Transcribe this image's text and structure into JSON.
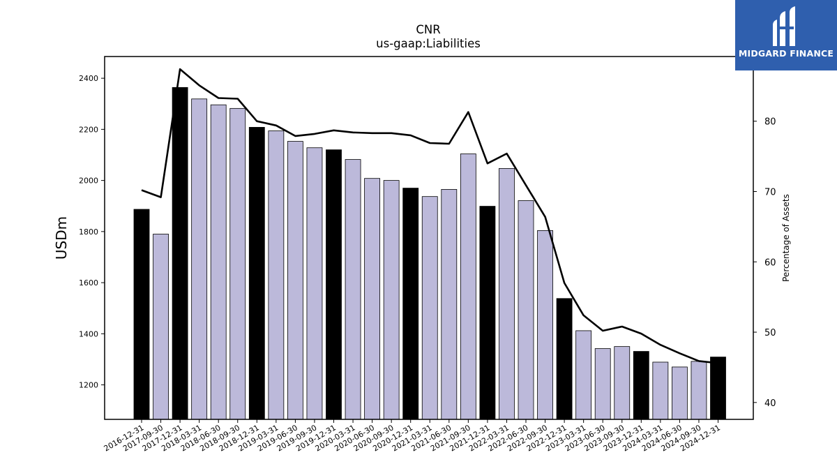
{
  "chart_data": {
    "type": "bar",
    "title": "CNR",
    "subtitle": "us-gaap:Liabilities",
    "ylabel": "USDm",
    "y2label": "Percentage of Assets",
    "ylim": [
      1065,
      2485
    ],
    "y2lim": [
      37.6,
      89.2
    ],
    "yticks": [
      1200,
      1400,
      1600,
      1800,
      2000,
      2200,
      2400
    ],
    "y2ticks": [
      40,
      50,
      60,
      70,
      80
    ],
    "categories": [
      "2016-12-31",
      "2017-09-30",
      "2017-12-31",
      "2018-03-31",
      "2018-06-30",
      "2018-09-30",
      "2018-12-31",
      "2019-03-31",
      "2019-06-30",
      "2019-09-30",
      "2019-12-31",
      "2020-03-31",
      "2020-06-30",
      "2020-09-30",
      "2020-12-31",
      "2021-03-31",
      "2021-06-30",
      "2021-09-30",
      "2021-12-31",
      "2022-03-31",
      "2022-06-30",
      "2022-09-30",
      "2022-12-31",
      "2023-03-31",
      "2023-06-30",
      "2023-09-30",
      "2023-12-31",
      "2024-03-31",
      "2024-06-30",
      "2024-09-30",
      "2024-12-31"
    ],
    "series": [
      {
        "values": [
          1887,
          1790,
          2364,
          2319,
          2296,
          2282,
          2208,
          2194,
          2153,
          2128,
          2120,
          2082,
          2008,
          2000,
          1970,
          1937,
          1965,
          2104,
          1899,
          2047,
          1921,
          1804,
          1538,
          1412,
          1342,
          1350,
          1331,
          1289,
          1270,
          1292,
          1309
        ],
        "colors": [
          "#000000",
          "#bcb9da",
          "#000000",
          "#bcb9da",
          "#bcb9da",
          "#bcb9da",
          "#000000",
          "#bcb9da",
          "#bcb9da",
          "#bcb9da",
          "#000000",
          "#bcb9da",
          "#bcb9da",
          "#bcb9da",
          "#000000",
          "#bcb9da",
          "#bcb9da",
          "#bcb9da",
          "#000000",
          "#bcb9da",
          "#bcb9da",
          "#bcb9da",
          "#000000",
          "#bcb9da",
          "#bcb9da",
          "#bcb9da",
          "#000000",
          "#bcb9da",
          "#bcb9da",
          "#bcb9da",
          "#000000"
        ]
      },
      {
        "type": "line",
        "axis": "right",
        "color": "#000000",
        "values": [
          70.2,
          69.2,
          87.4,
          85.1,
          83.3,
          83.2,
          80.0,
          79.4,
          77.9,
          78.2,
          78.7,
          78.4,
          78.3,
          78.3,
          78.0,
          76.9,
          76.8,
          81.3,
          74.0,
          75.4,
          70.9,
          66.4,
          57.0,
          52.4,
          50.2,
          50.8,
          49.8,
          48.2,
          47.0,
          45.9,
          45.6
        ]
      }
    ],
    "grid": false,
    "legend": "none"
  },
  "brand": {
    "name": "MIDGARD FINANCE",
    "color": "#2f5fae"
  },
  "colors": {
    "annual": "#000000",
    "quarterly": "#bcb9da"
  }
}
